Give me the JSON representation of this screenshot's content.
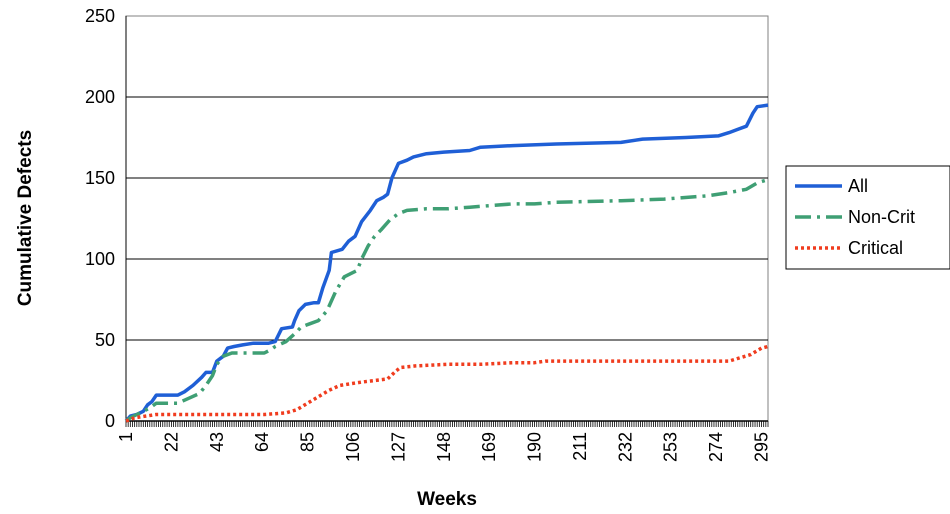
{
  "chart_data": {
    "type": "line",
    "xlabel": "Weeks",
    "ylabel": "Cumulative Defects",
    "ylim": [
      0,
      250
    ],
    "xlim": [
      1,
      298
    ],
    "y_ticks": [
      "0",
      "50",
      "100",
      "150",
      "200",
      "250"
    ],
    "x_tick_labels": [
      "1",
      "22",
      "43",
      "64",
      "85",
      "106",
      "127",
      "148",
      "169",
      "190",
      "211",
      "232",
      "253",
      "274",
      "295"
    ],
    "grid": "horizontal",
    "legend_position": "right",
    "series": [
      {
        "name": "All",
        "color": "#1f5fd6",
        "style": "solid",
        "points": [
          [
            1,
            0
          ],
          [
            3,
            3
          ],
          [
            6,
            4
          ],
          [
            9,
            6
          ],
          [
            11,
            10
          ],
          [
            13,
            12
          ],
          [
            15,
            16
          ],
          [
            20,
            16
          ],
          [
            25,
            16
          ],
          [
            28,
            18
          ],
          [
            32,
            22
          ],
          [
            36,
            27
          ],
          [
            38,
            30
          ],
          [
            41,
            30
          ],
          [
            43,
            37
          ],
          [
            46,
            40
          ],
          [
            48,
            45
          ],
          [
            51,
            46
          ],
          [
            55,
            47
          ],
          [
            60,
            48
          ],
          [
            67,
            48
          ],
          [
            70,
            49
          ],
          [
            73,
            57
          ],
          [
            78,
            58
          ],
          [
            79,
            62
          ],
          [
            81,
            68
          ],
          [
            84,
            72
          ],
          [
            88,
            73
          ],
          [
            90,
            73
          ],
          [
            92,
            82
          ],
          [
            95,
            93
          ],
          [
            96,
            104
          ],
          [
            101,
            106
          ],
          [
            104,
            111
          ],
          [
            107,
            114
          ],
          [
            110,
            123
          ],
          [
            114,
            130
          ],
          [
            117,
            136
          ],
          [
            120,
            138
          ],
          [
            122,
            140
          ],
          [
            124,
            150
          ],
          [
            127,
            159
          ],
          [
            131,
            161
          ],
          [
            134,
            163
          ],
          [
            140,
            165
          ],
          [
            148,
            166
          ],
          [
            160,
            167
          ],
          [
            165,
            169
          ],
          [
            180,
            170
          ],
          [
            200,
            171
          ],
          [
            230,
            172
          ],
          [
            240,
            174
          ],
          [
            260,
            175
          ],
          [
            275,
            176
          ],
          [
            280,
            178
          ],
          [
            284,
            180
          ],
          [
            288,
            182
          ],
          [
            291,
            190
          ],
          [
            293,
            194
          ],
          [
            298,
            195
          ]
        ]
      },
      {
        "name": "Non-Crit",
        "color": "#3f9f74",
        "style": "dash-dot",
        "points": [
          [
            1,
            0
          ],
          [
            3,
            2
          ],
          [
            6,
            4
          ],
          [
            9,
            6
          ],
          [
            12,
            8
          ],
          [
            15,
            11
          ],
          [
            20,
            11
          ],
          [
            25,
            11
          ],
          [
            30,
            14
          ],
          [
            35,
            17
          ],
          [
            38,
            22
          ],
          [
            41,
            28
          ],
          [
            43,
            35
          ],
          [
            46,
            40
          ],
          [
            50,
            42
          ],
          [
            55,
            42
          ],
          [
            60,
            42
          ],
          [
            65,
            42
          ],
          [
            68,
            44
          ],
          [
            70,
            46
          ],
          [
            75,
            49
          ],
          [
            80,
            55
          ],
          [
            82,
            58
          ],
          [
            86,
            60
          ],
          [
            90,
            62
          ],
          [
            94,
            68
          ],
          [
            98,
            80
          ],
          [
            102,
            89
          ],
          [
            105,
            91
          ],
          [
            108,
            93
          ],
          [
            110,
            100
          ],
          [
            113,
            108
          ],
          [
            116,
            114
          ],
          [
            119,
            118
          ],
          [
            123,
            124
          ],
          [
            127,
            128
          ],
          [
            131,
            130
          ],
          [
            140,
            131
          ],
          [
            150,
            131
          ],
          [
            160,
            132
          ],
          [
            170,
            133
          ],
          [
            180,
            134
          ],
          [
            190,
            134
          ],
          [
            200,
            135
          ],
          [
            230,
            136
          ],
          [
            250,
            137
          ],
          [
            270,
            139
          ],
          [
            280,
            141
          ],
          [
            288,
            143
          ],
          [
            293,
            147
          ],
          [
            298,
            149
          ]
        ]
      },
      {
        "name": "Critical",
        "color": "#f03c1e",
        "style": "dotted",
        "points": [
          [
            1,
            0
          ],
          [
            5,
            2
          ],
          [
            10,
            3
          ],
          [
            15,
            4
          ],
          [
            25,
            4
          ],
          [
            35,
            4
          ],
          [
            45,
            4
          ],
          [
            55,
            4
          ],
          [
            65,
            4
          ],
          [
            75,
            5
          ],
          [
            80,
            7
          ],
          [
            85,
            11
          ],
          [
            90,
            15
          ],
          [
            95,
            19
          ],
          [
            100,
            22
          ],
          [
            105,
            23
          ],
          [
            110,
            24
          ],
          [
            116,
            25
          ],
          [
            122,
            26
          ],
          [
            126,
            31
          ],
          [
            128,
            33
          ],
          [
            135,
            34
          ],
          [
            150,
            35
          ],
          [
            165,
            35
          ],
          [
            180,
            36
          ],
          [
            190,
            36
          ],
          [
            195,
            37
          ],
          [
            220,
            37
          ],
          [
            240,
            37
          ],
          [
            260,
            37
          ],
          [
            280,
            37
          ],
          [
            285,
            39
          ],
          [
            290,
            41
          ],
          [
            295,
            45
          ],
          [
            298,
            46
          ]
        ]
      }
    ]
  }
}
